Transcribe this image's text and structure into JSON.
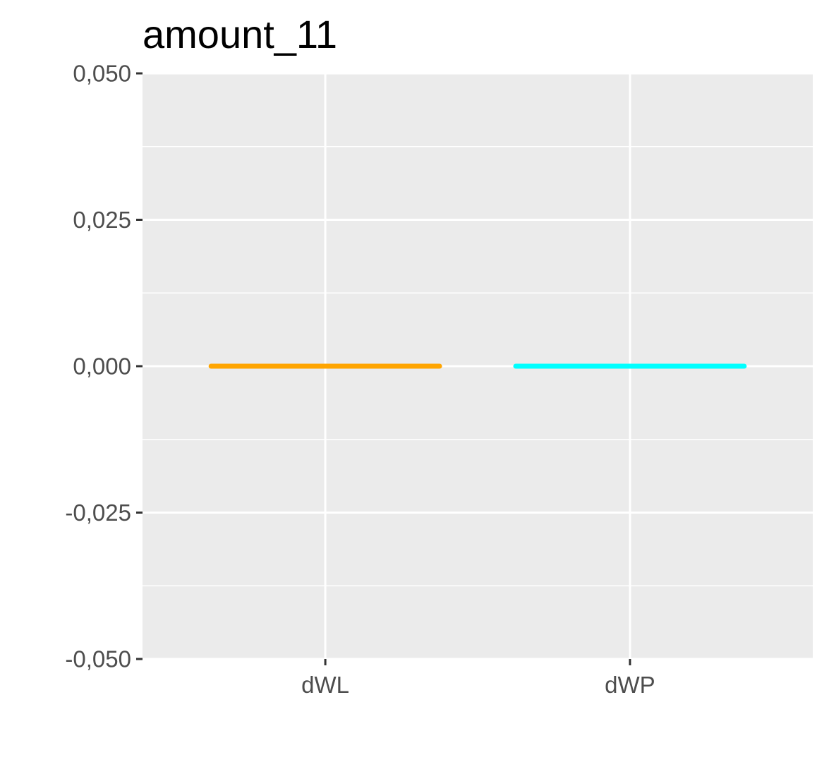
{
  "chart_data": {
    "type": "box",
    "title": "amount_11",
    "xlabel": "",
    "ylabel": "",
    "categories": [
      "dWL",
      "dWP"
    ],
    "values": [
      0.0,
      0.0
    ],
    "colors": [
      "#FFA500",
      "#00FFFF"
    ],
    "ylim": [
      -0.05,
      0.05
    ],
    "yticks": [
      -0.05,
      -0.025,
      0.0,
      0.025,
      0.05
    ],
    "ytick_labels": [
      "-0,050",
      "-0,025",
      "0,000",
      "0,025",
      "0,050"
    ],
    "grid": true,
    "legend": "none",
    "panel_background": "#EBEBEB",
    "grid_color": "#FFFFFF"
  }
}
